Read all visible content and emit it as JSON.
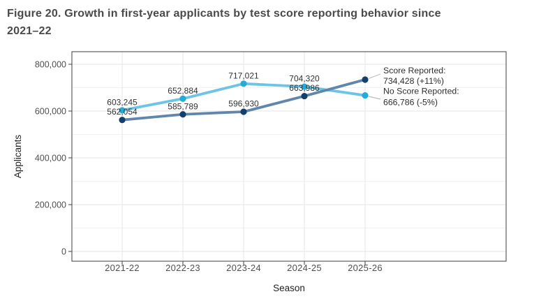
{
  "figure": {
    "title_lines": [
      "Figure 20. Growth in first-year applicants by test score reporting behavior since",
      "2021–22"
    ]
  },
  "chart_data": {
    "type": "line",
    "title": "Figure 20. Growth in first-year applicants by test score reporting behavior since 2021–22",
    "xlabel": "Season",
    "ylabel": "Applicants",
    "categories": [
      "2021-22",
      "2022-23",
      "2023-24",
      "2024-25",
      "2025-26"
    ],
    "series": [
      {
        "name": "No Score Reported",
        "values": [
          603245,
          652884,
          717021,
          704320,
          666786
        ],
        "point_labels": [
          "603,245",
          "652,884",
          "717,021",
          "704,320",
          null
        ],
        "annotation_lines": [
          "No Score Reported:",
          "666,786 (-5%)"
        ],
        "line_color": "#6cc4e6",
        "point_color": "#25abd8"
      },
      {
        "name": "Score Reported",
        "values": [
          562054,
          585789,
          596930,
          663986,
          734428
        ],
        "point_labels": [
          "562,054",
          "585,789",
          "596,930",
          "663,986",
          null
        ],
        "annotation_lines": [
          "Score Reported:",
          "734,428 (+11%)"
        ],
        "line_color": "#6186ad",
        "point_color": "#143f6d"
      }
    ],
    "ylim": [
      0,
      800000
    ],
    "yticks": [
      0,
      200000,
      400000,
      600000,
      800000
    ],
    "ytick_labels": [
      "0",
      "200,000",
      "400,000",
      "600,000",
      "800,000"
    ],
    "y_minor_gridlines": [
      100000,
      300000,
      500000,
      700000
    ],
    "grid": true,
    "legend_position": "annotations-right",
    "style": {
      "grid_major_color": "#e5e5e5",
      "grid_minor_color": "#f2f2f2",
      "panel_border_color": "#3f3f3f",
      "tick_mark_color": "#3f3f3f",
      "tick_label_color": "#4f4f4f",
      "axis_title_color": "#1f1f1f",
      "data_label_color": "#323232",
      "annotation_text_color": "#2e2e2e",
      "leader_line_color": "#bdbdbd",
      "title_color": "#4a4a4a"
    }
  }
}
